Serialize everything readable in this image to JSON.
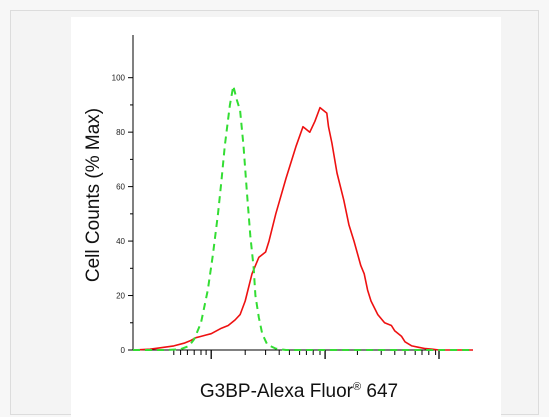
{
  "chart_data": {
    "type": "line",
    "title": "",
    "xlabel": "G3BP-Alexa Fluor",
    "xlabel_superscript": "®",
    "xlabel_suffix": " 647",
    "ylabel": "Cell Counts (% Max)",
    "ylim": [
      0,
      100
    ],
    "xlim": [
      0,
      1
    ],
    "x_scale": "log",
    "yticks": [
      0,
      20,
      40,
      60,
      80,
      100
    ],
    "ytick_labels": [
      "0",
      "20",
      "40",
      "60",
      "80",
      "100"
    ],
    "grid": false,
    "legend": "none",
    "series": [
      {
        "color": "#ee1111",
        "style": "solid",
        "x": [
          0.0,
          0.05,
          0.08,
          0.12,
          0.15,
          0.17,
          0.185,
          0.2,
          0.215,
          0.23,
          0.26,
          0.28,
          0.3,
          0.315,
          0.33,
          0.35,
          0.37,
          0.39,
          0.4,
          0.42,
          0.45,
          0.48,
          0.5,
          0.52,
          0.535,
          0.55,
          0.57,
          0.575,
          0.585,
          0.6,
          0.62,
          0.635,
          0.65,
          0.67,
          0.68,
          0.69,
          0.7,
          0.72,
          0.74,
          0.76,
          0.77,
          0.79,
          0.8,
          0.82,
          0.84,
          0.86,
          0.88,
          0.9,
          0.93,
          0.96,
          0.98,
          1.0
        ],
        "y": [
          0,
          0.3,
          0.8,
          1.5,
          2.5,
          3.5,
          4.5,
          5,
          5.5,
          6,
          8,
          9,
          11,
          13,
          18,
          28,
          34,
          36,
          40,
          50,
          63,
          75,
          82,
          80,
          84,
          89,
          87,
          82,
          76,
          65,
          55,
          46,
          40,
          31,
          28,
          22,
          18,
          13,
          10,
          9,
          7,
          5,
          3,
          1.5,
          1,
          0.5,
          0.3,
          0,
          0,
          0,
          0,
          0
        ]
      },
      {
        "color": "#33dd33",
        "style": "dashed",
        "x": [
          0.0,
          0.1,
          0.14,
          0.165,
          0.18,
          0.2,
          0.22,
          0.235,
          0.25,
          0.26,
          0.27,
          0.285,
          0.295,
          0.305,
          0.315,
          0.325,
          0.335,
          0.345,
          0.355,
          0.36,
          0.37,
          0.38,
          0.395,
          0.42,
          0.45,
          0.5,
          1.0
        ],
        "y": [
          0,
          0,
          0.3,
          1.5,
          4,
          10,
          22,
          35,
          50,
          62,
          75,
          90,
          97,
          92,
          88,
          75,
          58,
          42,
          30,
          20,
          12,
          6,
          2,
          0.5,
          0,
          0,
          0
        ]
      }
    ],
    "x_major_ticks": [
      0.23,
      0.565,
      0.9
    ],
    "x_minor_ticks": [
      0.12,
      0.14,
      0.16,
      0.18,
      0.2,
      0.215,
      0.33,
      0.39,
      0.43,
      0.46,
      0.49,
      0.51,
      0.53,
      0.55,
      0.66,
      0.73,
      0.77,
      0.8,
      0.83,
      0.85,
      0.87,
      0.89
    ]
  }
}
